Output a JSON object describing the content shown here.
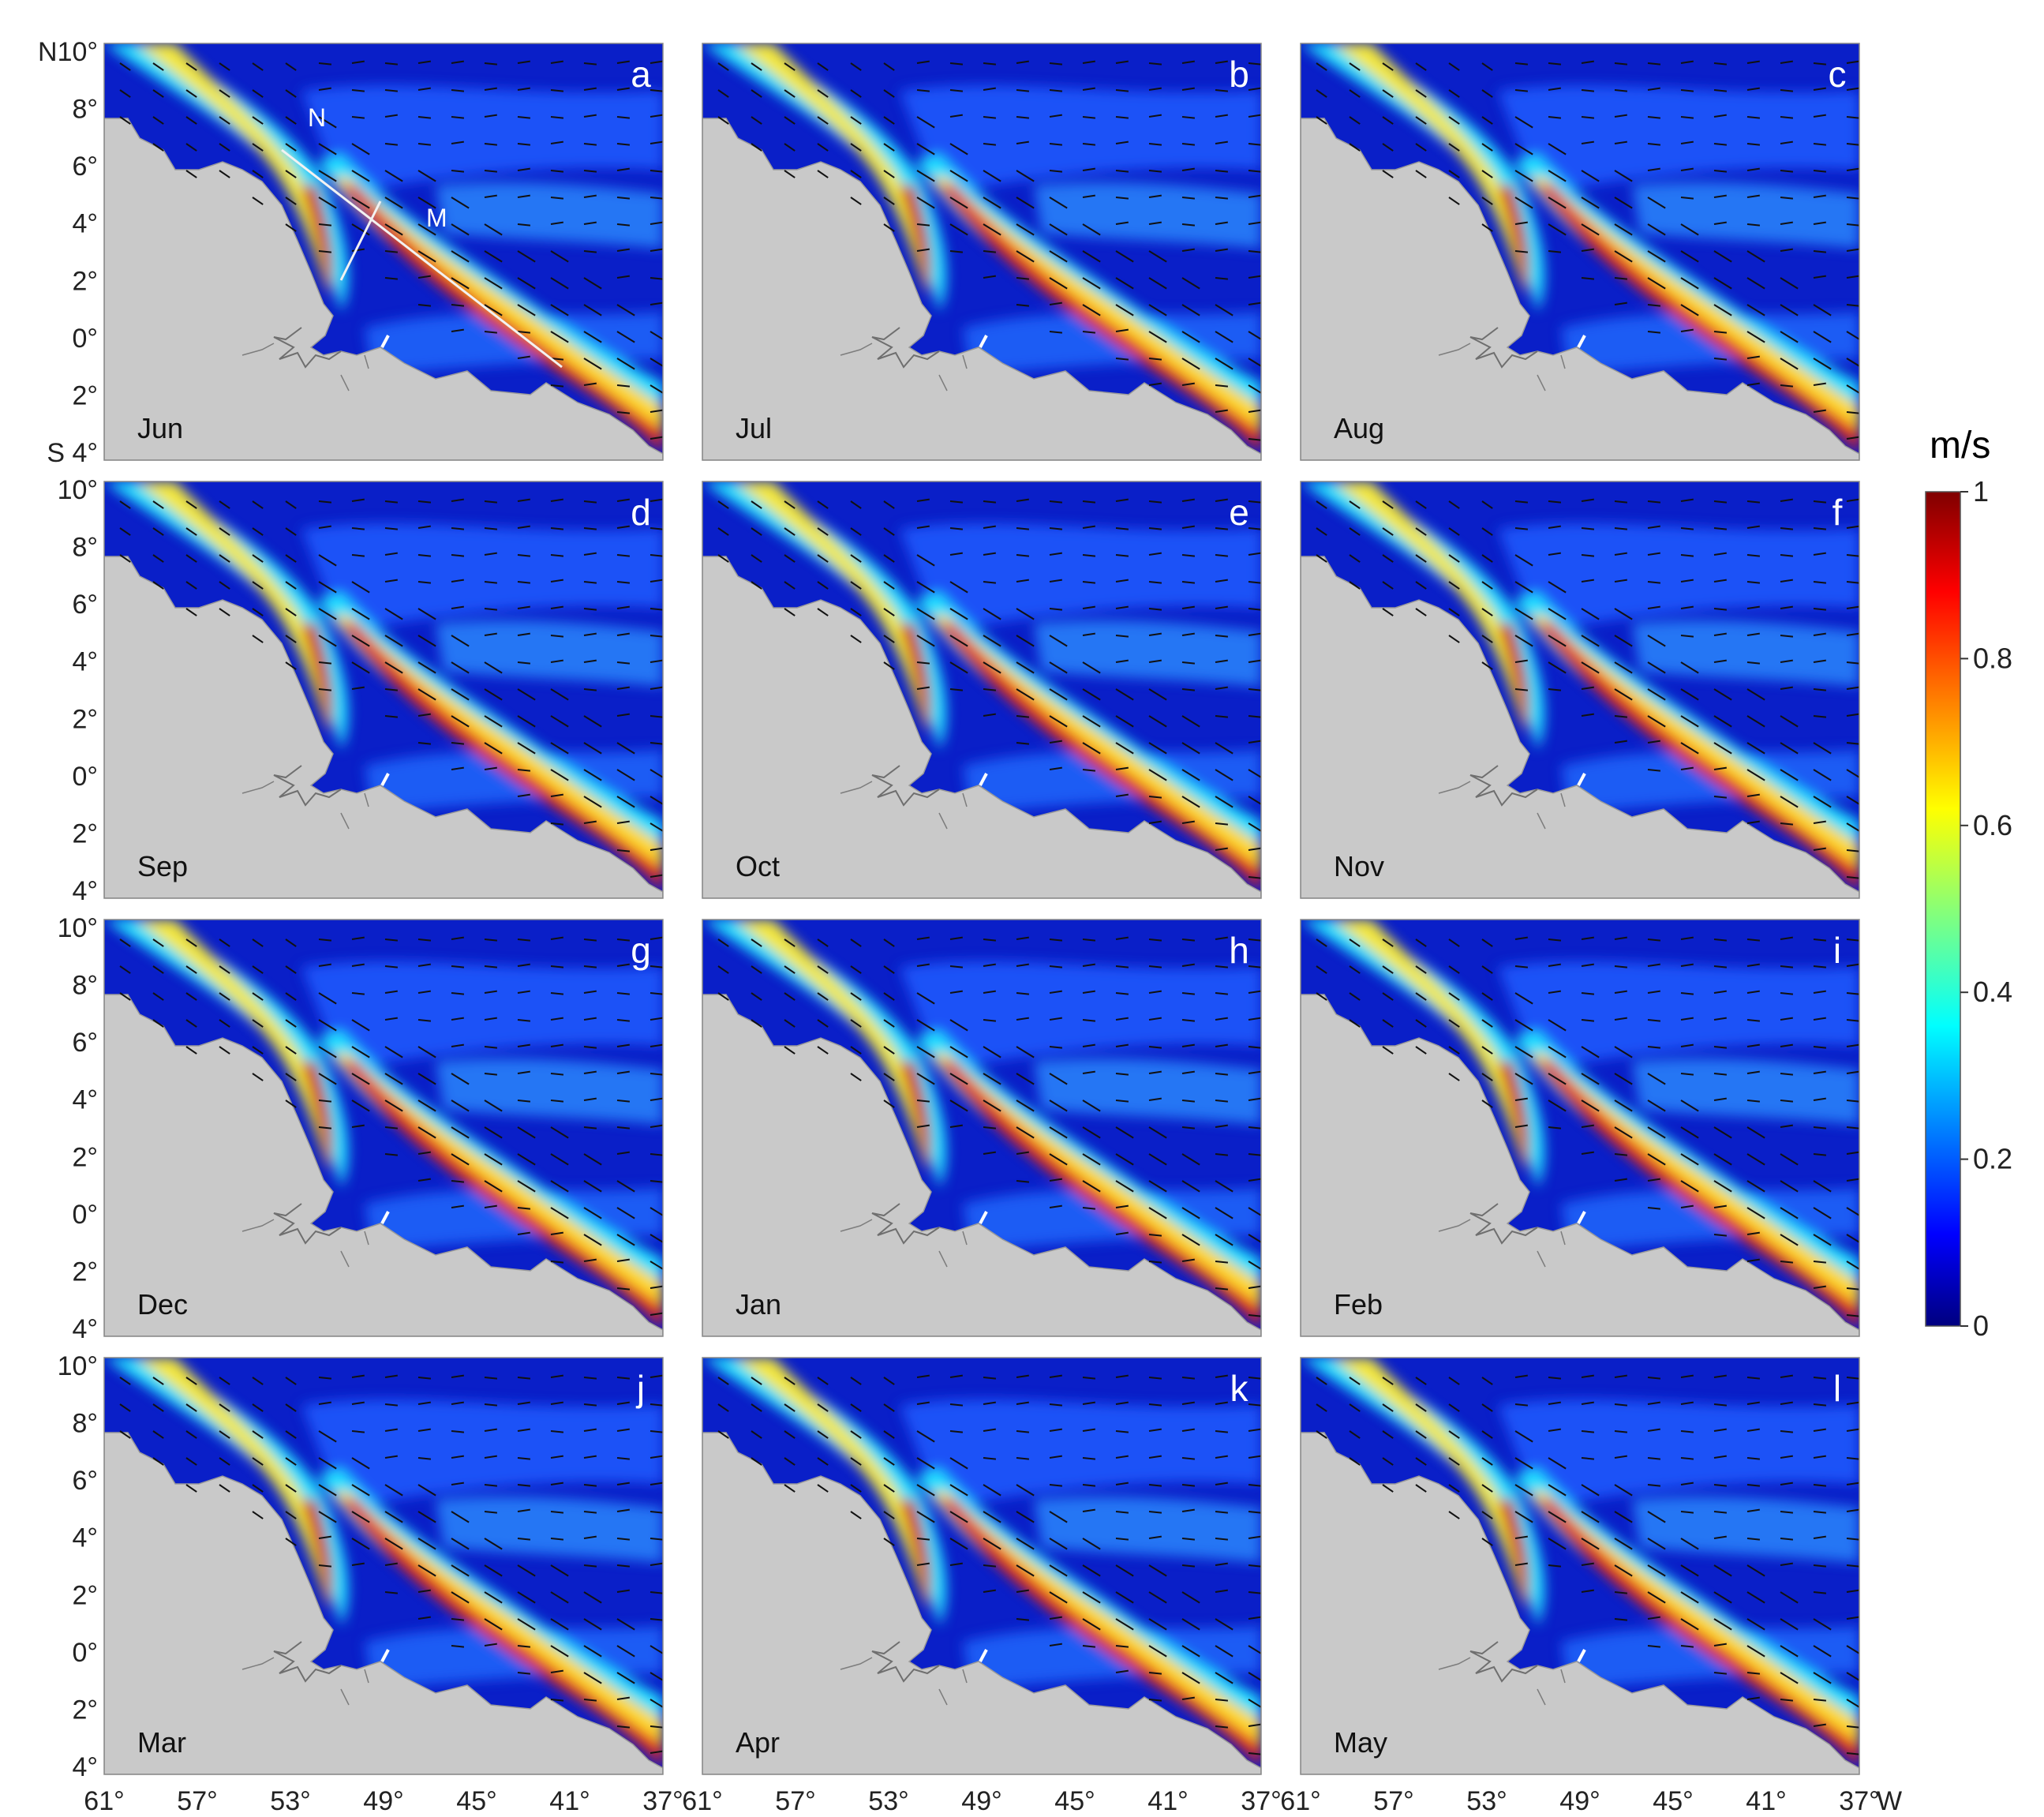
{
  "figure": {
    "panels": [
      {
        "letter": "a",
        "month": "Jun"
      },
      {
        "letter": "b",
        "month": "Jul"
      },
      {
        "letter": "c",
        "month": "Aug"
      },
      {
        "letter": "d",
        "month": "Sep"
      },
      {
        "letter": "e",
        "month": "Oct"
      },
      {
        "letter": "f",
        "month": "Nov"
      },
      {
        "letter": "g",
        "month": "Dec"
      },
      {
        "letter": "h",
        "month": "Jan"
      },
      {
        "letter": "i",
        "month": "Feb"
      },
      {
        "letter": "j",
        "month": "Mar"
      },
      {
        "letter": "k",
        "month": "Apr"
      },
      {
        "letter": "l",
        "month": "May"
      }
    ],
    "lat_ticks": [
      "10°",
      "8°",
      "6°",
      "4°",
      "2°",
      "0°",
      "2°",
      "4°"
    ],
    "lat_ticks_first": [
      "N10°",
      "8°",
      "6°",
      "4°",
      "2°",
      "0°",
      "2°",
      "S  4°"
    ],
    "lon_ticks": [
      "61°",
      "57°",
      "53°",
      "49°",
      "45°",
      "41°",
      "37°"
    ],
    "lon_unit": "W",
    "section_labels": {
      "north": "N",
      "middle": "M"
    },
    "colorbar": {
      "unit": "m/s",
      "ticks": [
        "1",
        "0.8",
        "0.6",
        "0.4",
        "0.2",
        "0"
      ],
      "range": [
        0,
        1
      ],
      "colors": [
        "#00007f",
        "#0000ff",
        "#0080ff",
        "#00ffff",
        "#80ff80",
        "#ffff00",
        "#ff8000",
        "#ff0000",
        "#7f0000"
      ]
    }
  }
}
